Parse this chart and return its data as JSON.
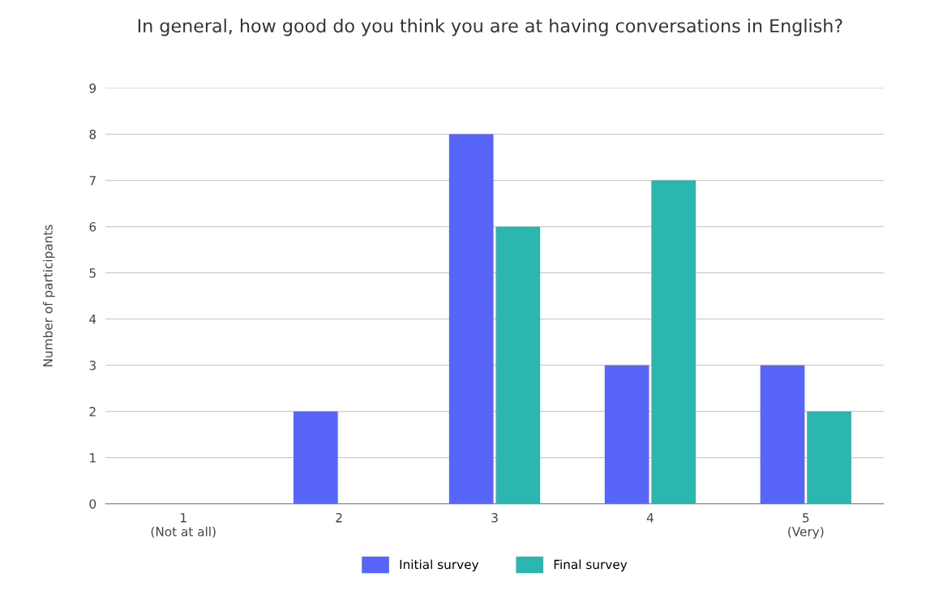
{
  "chart_data": {
    "type": "bar",
    "title": "In general, how good do you think you are at having conversations in English?",
    "ylabel": "Number of participants",
    "categories": [
      "1\n(Not at all)",
      "2",
      "3",
      "4",
      "5\n(Very)"
    ],
    "series": [
      {
        "name": "Initial survey",
        "color": "#5865f9",
        "values": [
          0,
          2,
          8,
          3,
          3
        ]
      },
      {
        "name": "Final survey",
        "color": "#2bb7b0",
        "values": [
          0,
          0,
          6,
          7,
          2
        ]
      }
    ],
    "ylim": [
      0,
      9
    ],
    "yticks": [
      0,
      1,
      2,
      3,
      4,
      5,
      6,
      7,
      8,
      9
    ],
    "grid": "y",
    "legend": "bottom"
  }
}
